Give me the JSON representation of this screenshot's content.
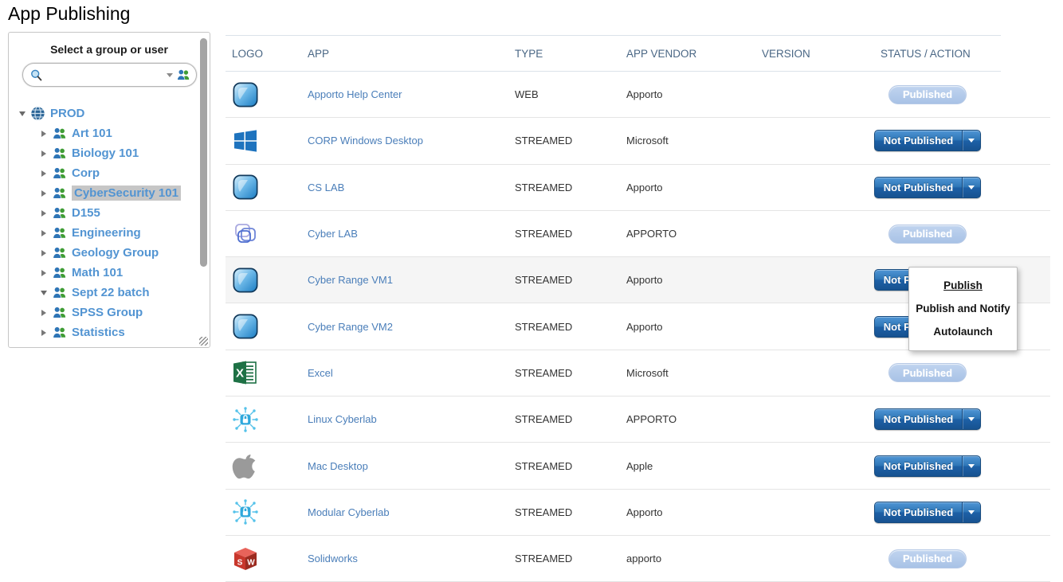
{
  "page": {
    "title": "App Publishing"
  },
  "colors": {
    "link_blue": "#4a7eb9",
    "tree_blue": "#5294d2",
    "header_text": "#4a6785",
    "button_blue": "#1d60a6",
    "published_pill": "#aec6e8",
    "selected_tree_bg": "#c6c6c6"
  },
  "sidebar": {
    "label": "Select a group or user",
    "search": {
      "value": "",
      "placeholder": ""
    },
    "tree": [
      {
        "label": "PROD",
        "icon": "globe-icon",
        "level": 0,
        "state": "expanded",
        "selected": false
      },
      {
        "label": "Art 101",
        "icon": "group-icon",
        "level": 1,
        "state": "collapsed",
        "selected": false
      },
      {
        "label": "Biology 101",
        "icon": "group-icon",
        "level": 1,
        "state": "collapsed",
        "selected": false
      },
      {
        "label": "Corp",
        "icon": "group-icon",
        "level": 1,
        "state": "collapsed",
        "selected": false
      },
      {
        "label": "CyberSecurity 101",
        "icon": "group-icon",
        "level": 1,
        "state": "collapsed",
        "selected": true
      },
      {
        "label": "D155",
        "icon": "group-icon",
        "level": 1,
        "state": "collapsed",
        "selected": false
      },
      {
        "label": "Engineering",
        "icon": "group-icon",
        "level": 1,
        "state": "collapsed",
        "selected": false
      },
      {
        "label": "Geology Group",
        "icon": "group-icon",
        "level": 1,
        "state": "collapsed",
        "selected": false
      },
      {
        "label": "Math 101",
        "icon": "group-icon",
        "level": 1,
        "state": "collapsed",
        "selected": false
      },
      {
        "label": "Sept 22 batch",
        "icon": "group-icon",
        "level": 1,
        "state": "expanded",
        "selected": false
      },
      {
        "label": "SPSS Group",
        "icon": "group-icon",
        "level": 1,
        "state": "collapsed",
        "selected": false
      },
      {
        "label": "Statistics",
        "icon": "group-icon",
        "level": 1,
        "state": "collapsed",
        "selected": false
      }
    ]
  },
  "table": {
    "columns": [
      "LOGO",
      "APP",
      "TYPE",
      "APP VENDOR",
      "VERSION",
      "STATUS / ACTION"
    ],
    "rows": [
      {
        "logo": "apporto-logo",
        "app": "Apporto Help Center",
        "type": "WEB",
        "vendor": "Apporto",
        "version": "",
        "status": "Published",
        "status_kind": "published",
        "highlighted": false
      },
      {
        "logo": "windows-logo",
        "app": "CORP Windows Desktop",
        "type": "STREAMED",
        "vendor": "Microsoft",
        "version": "",
        "status": "Not Published",
        "status_kind": "not_published",
        "highlighted": false
      },
      {
        "logo": "apporto-logo",
        "app": "CS LAB",
        "type": "STREAMED",
        "vendor": "Apporto",
        "version": "",
        "status": "Not Published",
        "status_kind": "not_published",
        "highlighted": false
      },
      {
        "logo": "cyberlab-logo",
        "app": "Cyber LAB",
        "type": "STREAMED",
        "vendor": "APPORTO",
        "version": "",
        "status": "Published",
        "status_kind": "published",
        "highlighted": false
      },
      {
        "logo": "apporto-logo",
        "app": "Cyber Range VM1",
        "type": "STREAMED",
        "vendor": "Apporto",
        "version": "",
        "status": "Not Published",
        "status_kind": "not_published",
        "highlighted": true
      },
      {
        "logo": "apporto-logo",
        "app": "Cyber Range VM2",
        "type": "STREAMED",
        "vendor": "Apporto",
        "version": "",
        "status": "Not Published",
        "status_kind": "not_published",
        "highlighted": false
      },
      {
        "logo": "excel-logo",
        "app": "Excel",
        "type": "STREAMED",
        "vendor": "Microsoft",
        "version": "",
        "status": "Published",
        "status_kind": "published",
        "highlighted": false
      },
      {
        "logo": "cyberlock-logo",
        "app": "Linux Cyberlab",
        "type": "STREAMED",
        "vendor": "APPORTO",
        "version": "",
        "status": "Not Published",
        "status_kind": "not_published",
        "highlighted": false
      },
      {
        "logo": "apple-logo",
        "app": "Mac Desktop",
        "type": "STREAMED",
        "vendor": "Apple",
        "version": "",
        "status": "Not Published",
        "status_kind": "not_published",
        "highlighted": false
      },
      {
        "logo": "cyberlock-logo",
        "app": "Modular Cyberlab",
        "type": "STREAMED",
        "vendor": "Apporto",
        "version": "",
        "status": "Not Published",
        "status_kind": "not_published",
        "highlighted": false
      },
      {
        "logo": "solidworks-logo",
        "app": "Solidworks",
        "type": "STREAMED",
        "vendor": "apporto",
        "version": "",
        "status": "Published",
        "status_kind": "published",
        "highlighted": false
      }
    ]
  },
  "context_menu": {
    "items": [
      {
        "label": "Publish",
        "emphasized": true
      },
      {
        "label": "Publish and Notify",
        "emphasized": false
      },
      {
        "label": "Autolaunch",
        "emphasized": false
      }
    ]
  }
}
